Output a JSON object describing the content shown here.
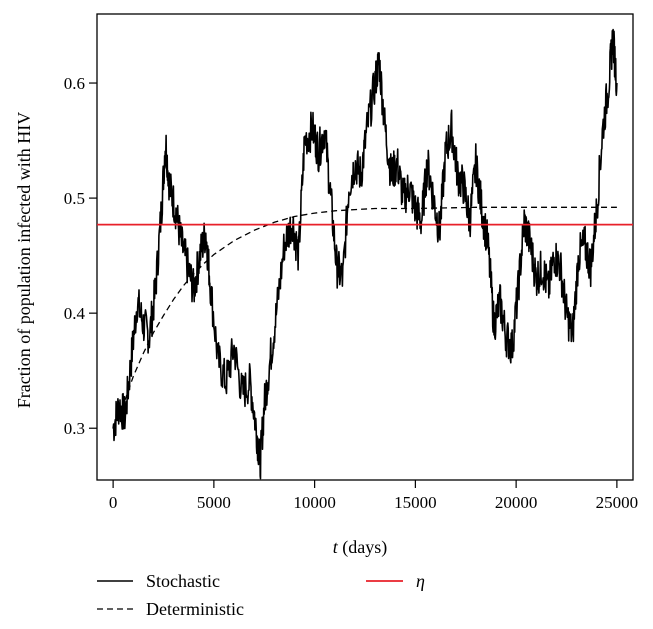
{
  "chart_data": {
    "type": "line",
    "title": "",
    "xlabel_italic": "t",
    "xlabel_rest": " (days)",
    "ylabel": "Fraction of population infected with HIV",
    "xlim": [
      -800,
      25800
    ],
    "ylim": [
      0.255,
      0.66
    ],
    "x_ticks": [
      0,
      5000,
      10000,
      15000,
      20000,
      25000
    ],
    "x_tick_labels": [
      "0",
      "5000",
      "10000",
      "15000",
      "20000",
      "25000"
    ],
    "y_ticks": [
      0.3,
      0.4,
      0.5,
      0.6
    ],
    "y_tick_labels": [
      "0.3",
      "0.4",
      "0.5",
      "0.6"
    ],
    "grid": false,
    "legend_position": "bottom",
    "series": [
      {
        "name": "Stochastic",
        "style": "solid",
        "color": "#000000",
        "x": [
          0,
          300,
          600,
          900,
          1200,
          1500,
          1800,
          2100,
          2400,
          2600,
          2800,
          3100,
          3400,
          3700,
          4000,
          4300,
          4600,
          4800,
          5200,
          5600,
          6000,
          6400,
          6800,
          7100,
          7300,
          7500,
          7800,
          8100,
          8500,
          8900,
          9200,
          9500,
          9900,
          10200,
          10500,
          10800,
          11100,
          11400,
          11700,
          12000,
          12300,
          12600,
          13000,
          13200,
          13500,
          13800,
          14100,
          14400,
          14700,
          15000,
          15300,
          15600,
          15900,
          16200,
          16500,
          16800,
          17100,
          17400,
          17700,
          18000,
          18300,
          18600,
          18900,
          19200,
          19500,
          19800,
          20100,
          20400,
          20700,
          21000,
          21300,
          21600,
          21900,
          22200,
          22500,
          22800,
          23100,
          23400,
          23700,
          24000,
          24300,
          24600,
          24800,
          25000
        ],
        "values": [
          0.3,
          0.32,
          0.31,
          0.36,
          0.41,
          0.39,
          0.38,
          0.42,
          0.49,
          0.55,
          0.51,
          0.49,
          0.46,
          0.44,
          0.42,
          0.45,
          0.47,
          0.43,
          0.36,
          0.34,
          0.37,
          0.33,
          0.34,
          0.3,
          0.27,
          0.32,
          0.36,
          0.4,
          0.46,
          0.48,
          0.45,
          0.55,
          0.56,
          0.54,
          0.56,
          0.5,
          0.44,
          0.43,
          0.51,
          0.53,
          0.52,
          0.56,
          0.6,
          0.62,
          0.56,
          0.52,
          0.53,
          0.5,
          0.51,
          0.49,
          0.48,
          0.53,
          0.5,
          0.47,
          0.54,
          0.56,
          0.52,
          0.51,
          0.48,
          0.53,
          0.49,
          0.46,
          0.39,
          0.41,
          0.38,
          0.37,
          0.42,
          0.48,
          0.46,
          0.43,
          0.44,
          0.42,
          0.45,
          0.44,
          0.4,
          0.38,
          0.45,
          0.46,
          0.44,
          0.49,
          0.56,
          0.6,
          0.64,
          0.6
        ]
      },
      {
        "name": "Deterministic",
        "style": "dashed",
        "color": "#000000",
        "x": [
          0,
          500,
          1000,
          1500,
          2000,
          2500,
          3000,
          3500,
          4000,
          4500,
          5000,
          6000,
          7000,
          8000,
          9000,
          10000,
          11000,
          12000,
          13000,
          15000,
          18000,
          21000,
          25000
        ],
        "values": [
          0.3,
          0.32,
          0.345,
          0.365,
          0.383,
          0.398,
          0.412,
          0.424,
          0.434,
          0.443,
          0.451,
          0.463,
          0.472,
          0.479,
          0.484,
          0.487,
          0.489,
          0.49,
          0.491,
          0.491,
          0.492,
          0.492,
          0.492
        ]
      },
      {
        "name": "η",
        "style": "solid",
        "color": "#e8202a",
        "x": [
          -800,
          25800
        ],
        "values": [
          0.477,
          0.477
        ]
      }
    ]
  }
}
